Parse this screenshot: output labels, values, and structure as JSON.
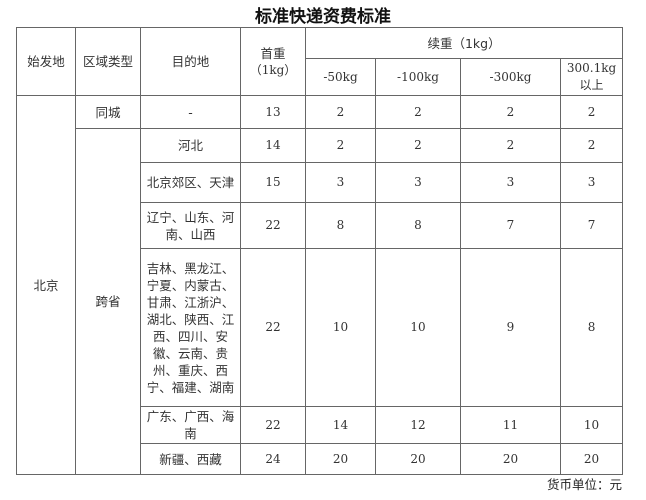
{
  "title": "标准快递资费标准",
  "headers": {
    "origin": "始发地",
    "zone_type": "区域类型",
    "destination": "目的地",
    "first_weight": "首重",
    "first_weight_unit": "（1kg）",
    "additional_weight": "续重（1kg）",
    "tiers": [
      "-50kg",
      "-100kg",
      "-300kg",
      "300.1kg 以上"
    ]
  },
  "origin": "北京",
  "zones": [
    "同城",
    "跨省"
  ],
  "rows": [
    {
      "destination": "-",
      "first": "13",
      "tiers": [
        "2",
        "2",
        "2",
        "2"
      ]
    },
    {
      "destination": "河北",
      "first": "14",
      "tiers": [
        "2",
        "2",
        "2",
        "2"
      ]
    },
    {
      "destination": "北京郊区、天津",
      "first": "15",
      "tiers": [
        "3",
        "3",
        "3",
        "3"
      ]
    },
    {
      "destination": "辽宁、山东、河南、山西",
      "first": "22",
      "tiers": [
        "8",
        "8",
        "7",
        "7"
      ]
    },
    {
      "destination": "吉林、黑龙江、宁夏、内蒙古、甘肃、江浙沪、湖北、陕西、江西、四川、安徽、云南、贵州、重庆、西宁、福建、湖南",
      "first": "22",
      "tiers": [
        "10",
        "10",
        "9",
        "8"
      ]
    },
    {
      "destination": "广东、广西、海南",
      "first": "22",
      "tiers": [
        "14",
        "12",
        "11",
        "10"
      ]
    },
    {
      "destination": "新疆、西藏",
      "first": "24",
      "tiers": [
        "20",
        "20",
        "20",
        "20"
      ]
    }
  ],
  "footer": "货币单位：元"
}
